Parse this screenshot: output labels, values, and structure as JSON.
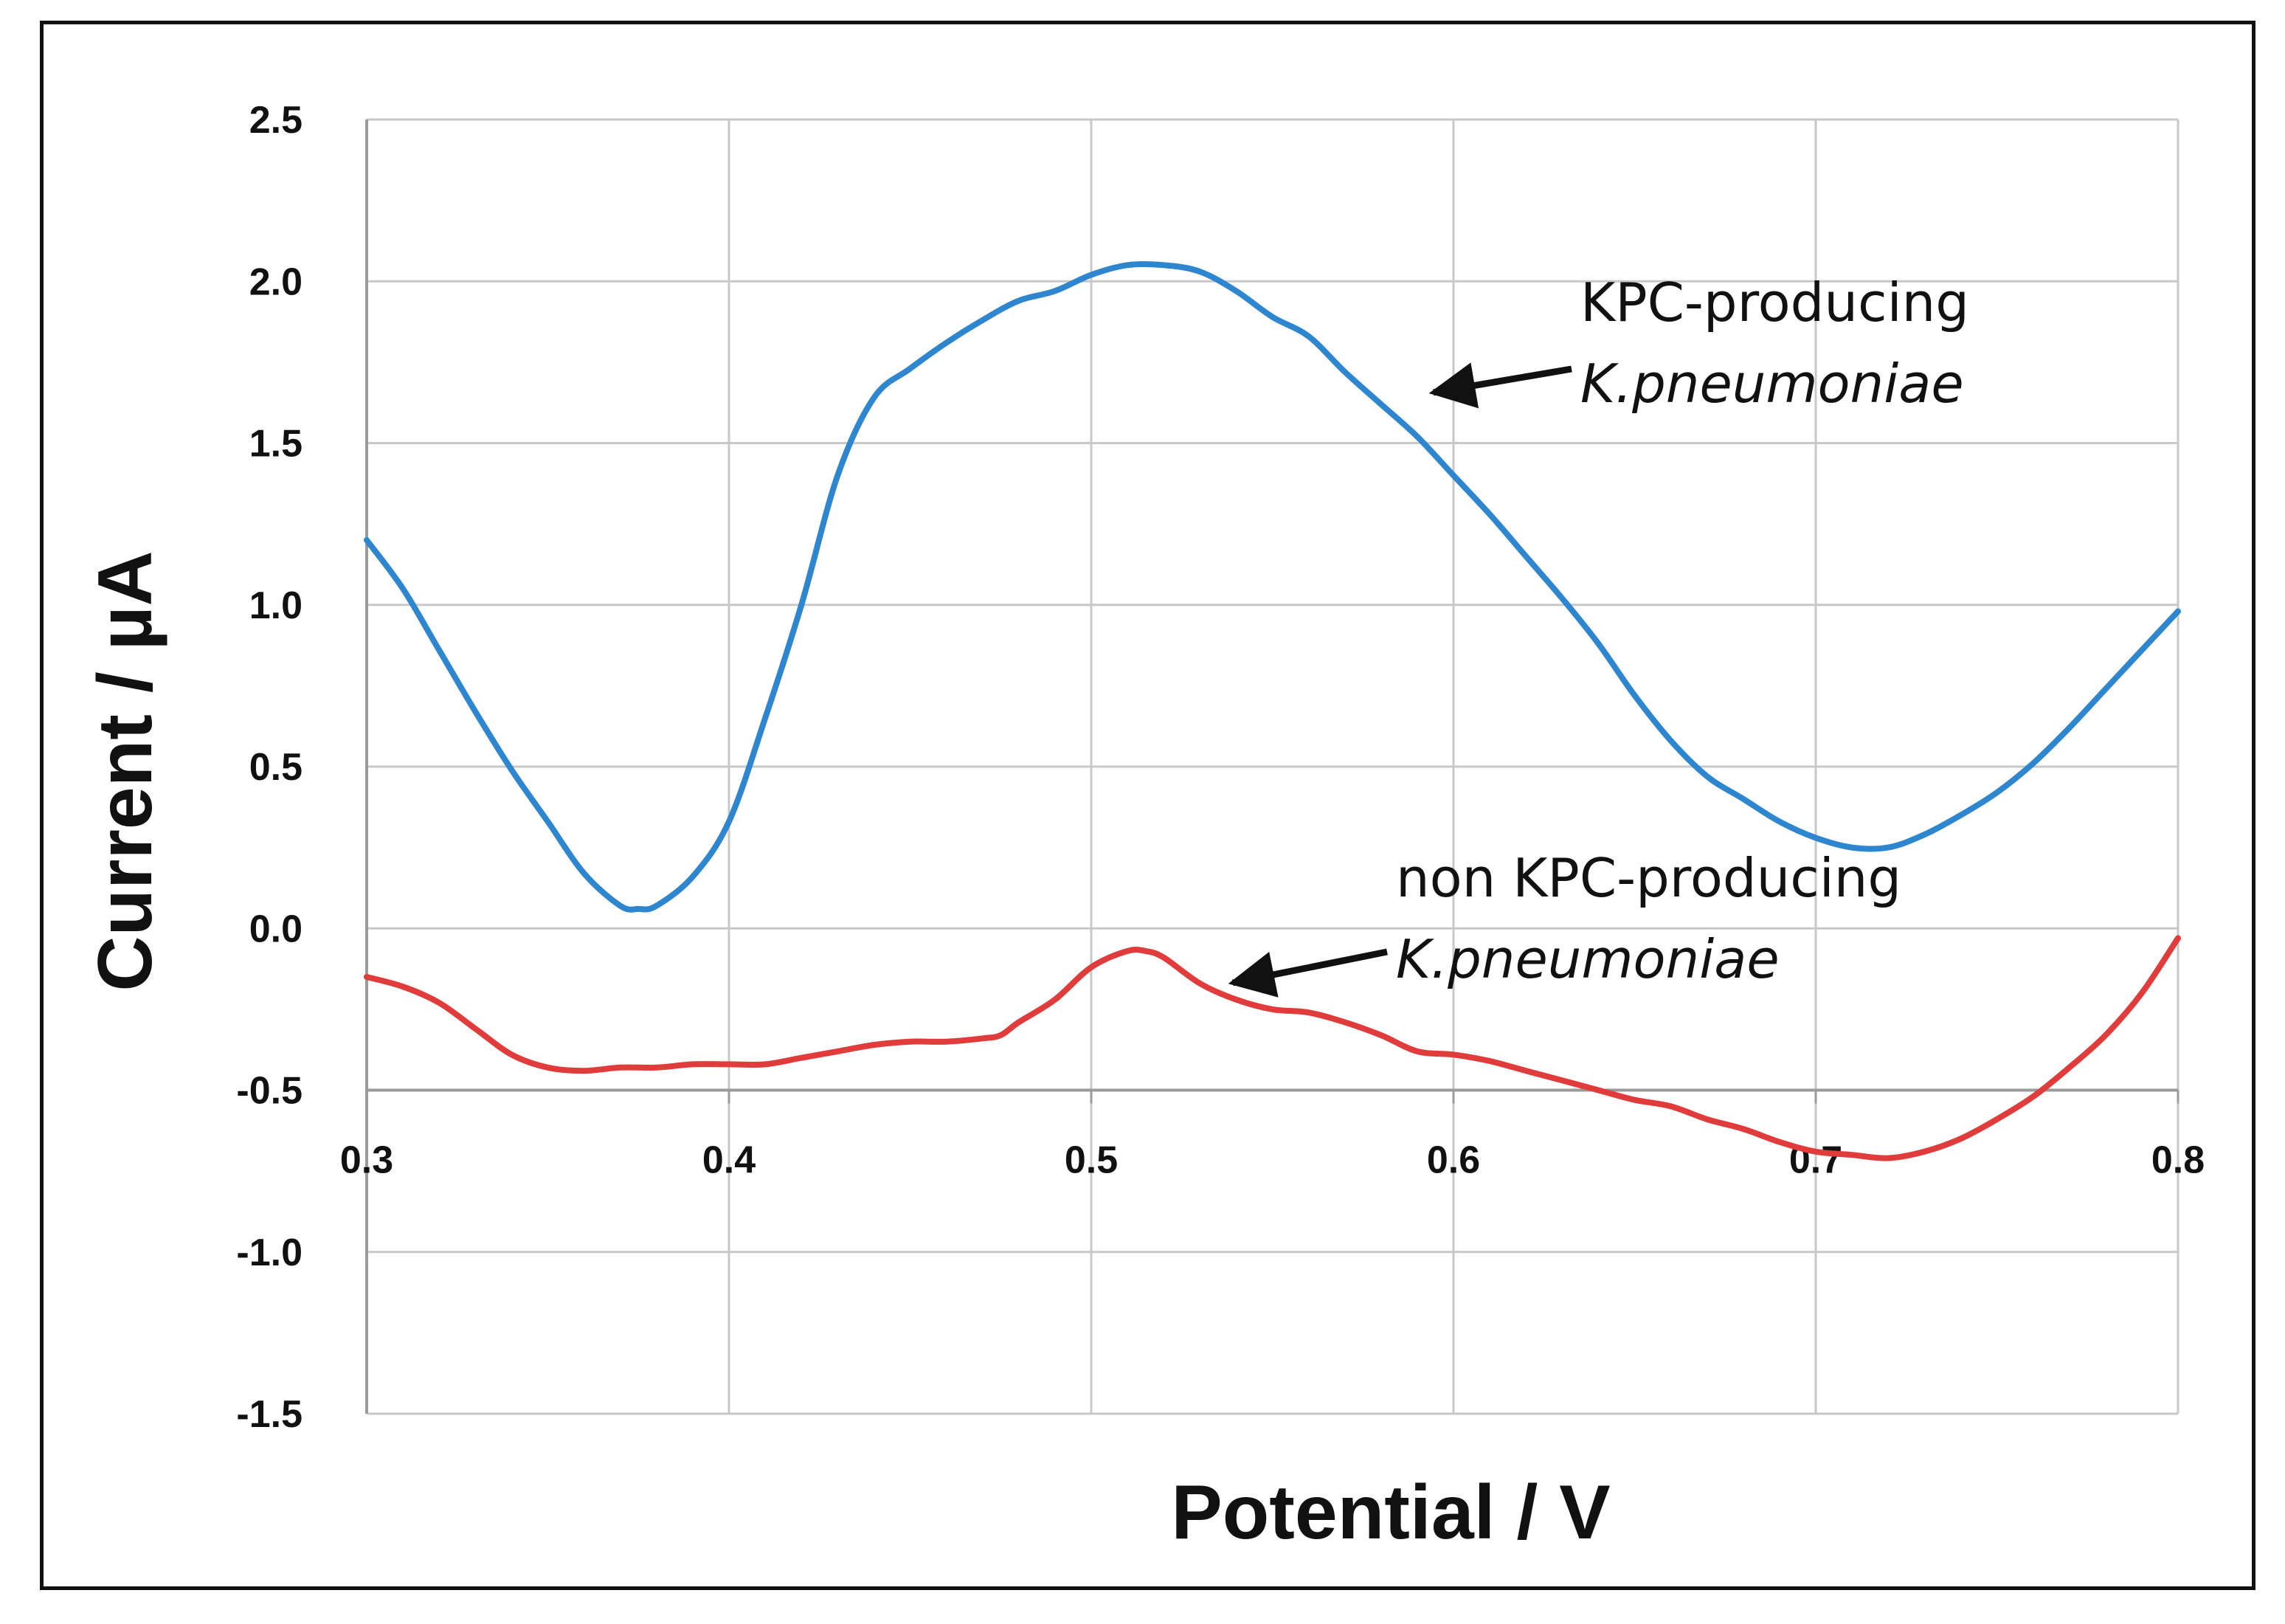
{
  "chart_data": {
    "type": "line",
    "title": "",
    "xlabel": "Potential / V",
    "ylabel": "Current / µA",
    "xlim": [
      0.3,
      0.8
    ],
    "ylim": [
      -1.5,
      2.5
    ],
    "x_ticks": [
      "0.3",
      "0.4",
      "0.5",
      "0.6",
      "0.7",
      "0.8"
    ],
    "y_ticks": [
      "2.5",
      "2.0",
      "1.5",
      "1.0",
      "0.5",
      "0.0",
      "-0.5",
      "-1.0",
      "-1.5"
    ],
    "grid": true,
    "series": [
      {
        "name": "KPC-producing K.pneumoniae",
        "color": "#2e86cf",
        "x": [
          0.3,
          0.31,
          0.32,
          0.33,
          0.34,
          0.35,
          0.36,
          0.37,
          0.375,
          0.38,
          0.39,
          0.4,
          0.41,
          0.42,
          0.43,
          0.44,
          0.45,
          0.46,
          0.47,
          0.48,
          0.49,
          0.5,
          0.51,
          0.52,
          0.53,
          0.54,
          0.55,
          0.56,
          0.57,
          0.58,
          0.59,
          0.6,
          0.61,
          0.62,
          0.63,
          0.64,
          0.65,
          0.66,
          0.67,
          0.68,
          0.69,
          0.7,
          0.71,
          0.72,
          0.73,
          0.74,
          0.75,
          0.76,
          0.77,
          0.78,
          0.79,
          0.8
        ],
        "y": [
          1.2,
          1.05,
          0.86,
          0.67,
          0.49,
          0.33,
          0.17,
          0.07,
          0.06,
          0.07,
          0.16,
          0.33,
          0.65,
          1.0,
          1.4,
          1.64,
          1.73,
          1.81,
          1.88,
          1.94,
          1.97,
          2.02,
          2.05,
          2.05,
          2.03,
          1.97,
          1.89,
          1.83,
          1.72,
          1.62,
          1.52,
          1.4,
          1.28,
          1.15,
          1.02,
          0.88,
          0.72,
          0.58,
          0.47,
          0.4,
          0.33,
          0.28,
          0.25,
          0.25,
          0.29,
          0.35,
          0.42,
          0.51,
          0.62,
          0.74,
          0.86,
          0.98
        ]
      },
      {
        "name": "non KPC-producing K.pneumoniae",
        "color": "#e03c3c",
        "x": [
          0.3,
          0.31,
          0.32,
          0.33,
          0.34,
          0.35,
          0.36,
          0.37,
          0.38,
          0.39,
          0.4,
          0.41,
          0.42,
          0.43,
          0.44,
          0.45,
          0.46,
          0.47,
          0.475,
          0.48,
          0.49,
          0.5,
          0.51,
          0.515,
          0.52,
          0.53,
          0.54,
          0.55,
          0.56,
          0.57,
          0.58,
          0.59,
          0.6,
          0.61,
          0.62,
          0.63,
          0.64,
          0.65,
          0.66,
          0.67,
          0.68,
          0.69,
          0.7,
          0.71,
          0.72,
          0.73,
          0.74,
          0.75,
          0.76,
          0.77,
          0.78,
          0.79,
          0.8
        ],
        "y": [
          -0.15,
          -0.18,
          -0.23,
          -0.31,
          -0.39,
          -0.43,
          -0.44,
          -0.43,
          -0.43,
          -0.42,
          -0.42,
          -0.42,
          -0.4,
          -0.38,
          -0.36,
          -0.35,
          -0.35,
          -0.34,
          -0.33,
          -0.29,
          -0.22,
          -0.12,
          -0.07,
          -0.07,
          -0.09,
          -0.17,
          -0.22,
          -0.25,
          -0.26,
          -0.29,
          -0.33,
          -0.38,
          -0.39,
          -0.41,
          -0.44,
          -0.47,
          -0.5,
          -0.53,
          -0.55,
          -0.59,
          -0.62,
          -0.66,
          -0.69,
          -0.7,
          -0.71,
          -0.69,
          -0.65,
          -0.59,
          -0.52,
          -0.43,
          -0.33,
          -0.2,
          -0.03
        ]
      }
    ],
    "annotations": [
      {
        "line1": "KPC-producing",
        "line2": "K.pneumoniae",
        "points_to": [
          0.59,
          1.67
        ]
      },
      {
        "line1": "non KPC-producing",
        "line2": "K.pneumoniae",
        "points_to": [
          0.535,
          -0.15
        ]
      }
    ]
  }
}
